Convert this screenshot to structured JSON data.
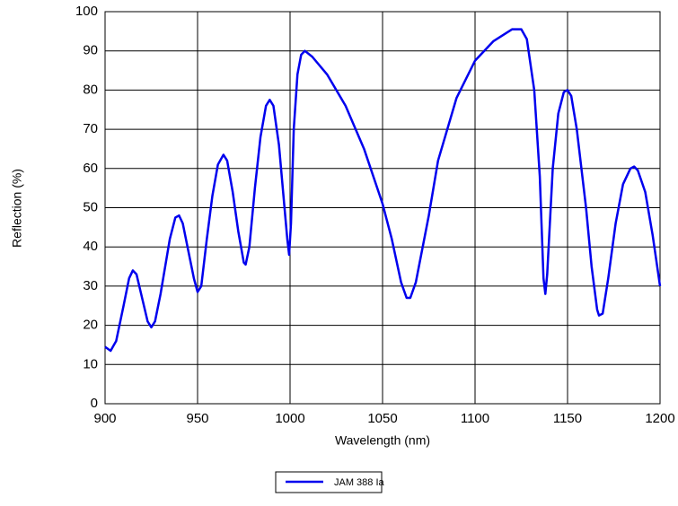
{
  "chart_data": {
    "type": "line",
    "x_label": "Wavelength (nm)",
    "y_label": "Reflection (%)",
    "x": [
      900,
      903,
      906,
      910,
      913,
      915,
      917,
      920,
      923,
      925,
      927,
      930,
      935,
      938,
      940,
      942,
      945,
      948,
      950,
      952,
      955,
      958,
      961,
      964,
      966,
      969,
      972,
      975,
      976,
      978,
      981,
      984,
      987,
      989,
      991,
      994,
      997,
      998.5,
      999.5,
      1000.5,
      1002,
      1004,
      1006,
      1008,
      1012,
      1020,
      1030,
      1040,
      1050,
      1055,
      1060,
      1063,
      1065,
      1068,
      1075,
      1080,
      1090,
      1100,
      1110,
      1120,
      1125,
      1128,
      1132,
      1135,
      1137,
      1138,
      1139,
      1142,
      1145,
      1148,
      1150,
      1152,
      1155,
      1160,
      1163,
      1166,
      1167,
      1169,
      1172,
      1176,
      1180,
      1184,
      1186,
      1188,
      1192,
      1196,
      1200
    ],
    "series": [
      {
        "name": "JAM 388 Ia",
        "color": "#0000ee",
        "values": [
          14.5,
          13.5,
          16,
          25,
          32,
          34,
          33,
          27,
          21,
          19.5,
          21,
          28,
          42,
          47.5,
          48,
          46,
          39,
          32,
          28.5,
          30,
          42,
          53,
          61,
          63.5,
          62,
          54,
          44,
          36,
          35.5,
          40,
          55,
          68,
          76,
          77.5,
          76,
          66,
          50,
          42,
          38,
          46,
          70,
          84,
          89,
          90,
          88.5,
          84,
          76,
          65,
          51,
          42,
          31,
          27,
          27,
          31,
          48,
          62,
          78,
          87.5,
          92.5,
          95.5,
          95.5,
          93,
          80,
          58,
          32,
          28,
          33,
          60,
          74,
          79.5,
          80,
          78.5,
          70,
          50,
          35,
          24,
          22.5,
          23,
          32,
          46,
          56,
          60,
          60.5,
          59.5,
          54,
          43,
          30
        ]
      }
    ],
    "xlim": [
      900,
      1200
    ],
    "xticks": [
      900,
      950,
      1000,
      1050,
      1100,
      1150,
      1200
    ],
    "ylim": [
      0,
      100
    ],
    "yticks": [
      0,
      10,
      20,
      30,
      40,
      50,
      60,
      70,
      80,
      90,
      100
    ],
    "grid": true,
    "legend": "bottom"
  }
}
